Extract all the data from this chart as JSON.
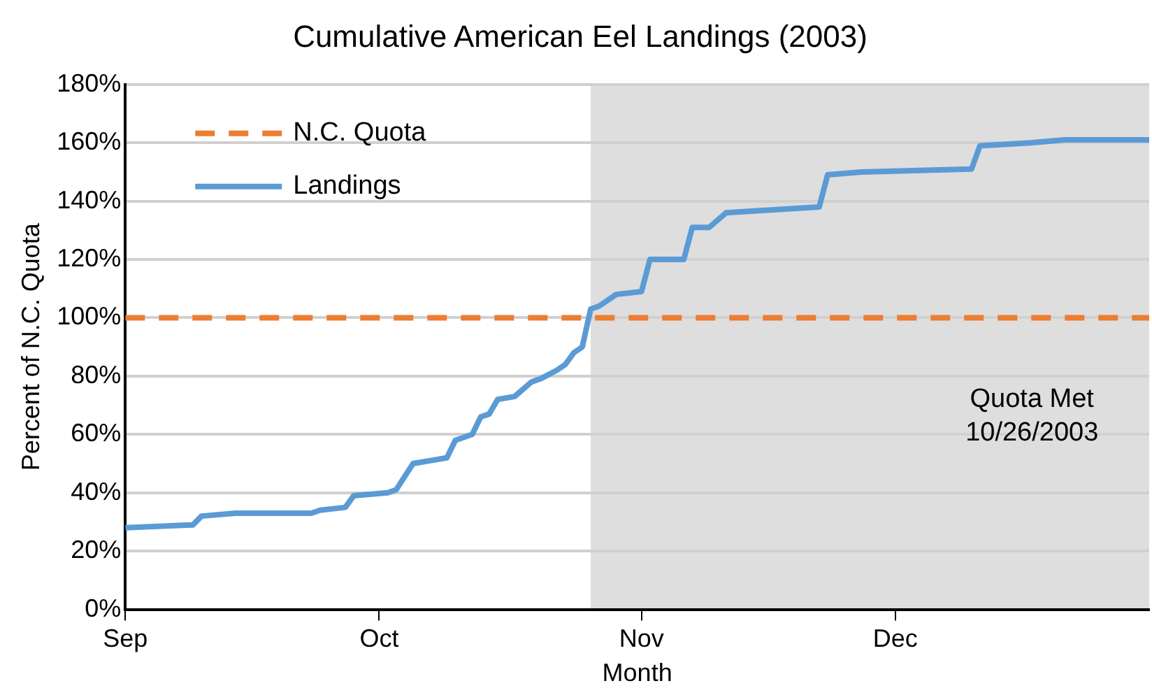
{
  "chart_data": {
    "type": "line",
    "title": "Cumulative American Eel Landings (2003)",
    "xlabel": "Month",
    "ylabel": "Percent of N.C. Quota",
    "x": [
      "2003-09-01",
      "2003-09-09",
      "2003-09-10",
      "2003-09-14",
      "2003-09-15",
      "2003-09-23",
      "2003-09-24",
      "2003-09-27",
      "2003-09-28",
      "2003-10-02",
      "2003-10-03",
      "2003-10-05",
      "2003-10-07",
      "2003-10-09",
      "2003-10-10",
      "2003-10-12",
      "2003-10-13",
      "2003-10-14",
      "2003-10-15",
      "2003-10-17",
      "2003-10-19",
      "2003-10-20",
      "2003-10-22",
      "2003-10-23",
      "2003-10-24",
      "2003-10-25",
      "2003-10-26",
      "2003-10-27",
      "2003-10-29",
      "2003-11-01",
      "2003-11-02",
      "2003-11-06",
      "2003-11-07",
      "2003-11-09",
      "2003-11-11",
      "2003-11-22",
      "2003-11-23",
      "2003-11-27",
      "2003-12-10",
      "2003-12-11",
      "2003-12-17",
      "2003-12-21",
      "2003-12-31"
    ],
    "series": [
      {
        "name": "Landings",
        "color": "#5b9bd5",
        "values": [
          28,
          29,
          32,
          33,
          33,
          33,
          34,
          35,
          39,
          40,
          41,
          50,
          51,
          52,
          58,
          60,
          66,
          67,
          72,
          73,
          78,
          79,
          82,
          84,
          88,
          90,
          103,
          104,
          108,
          109,
          120,
          120,
          131,
          131,
          136,
          138,
          149,
          150,
          151,
          159,
          160,
          161,
          161
        ]
      }
    ],
    "xlim": [
      "2003-09-01",
      "2003-12-31"
    ],
    "xticks": [
      {
        "value": "2003-09-01",
        "label": "Sep"
      },
      {
        "value": "2003-10-01",
        "label": "Oct"
      },
      {
        "value": "2003-11-01",
        "label": "Nov"
      },
      {
        "value": "2003-12-01",
        "label": "Dec"
      }
    ],
    "ylim": [
      0,
      180
    ],
    "yticks": [
      {
        "value": 0,
        "label": "0%"
      },
      {
        "value": 20,
        "label": "20%"
      },
      {
        "value": 40,
        "label": "40%"
      },
      {
        "value": 60,
        "label": "60%"
      },
      {
        "value": 80,
        "label": "80%"
      },
      {
        "value": 100,
        "label": "100%"
      },
      {
        "value": 120,
        "label": "120%"
      },
      {
        "value": 140,
        "label": "140%"
      },
      {
        "value": 160,
        "label": "160%"
      },
      {
        "value": 180,
        "label": "180%"
      }
    ],
    "ref_lines": [
      {
        "axis": "y",
        "value": 100,
        "label": "N.C. Quota",
        "color": "#ed7d31",
        "line_style": "dashed"
      }
    ],
    "bands": [
      {
        "axis": "x",
        "from": "2003-10-26",
        "to": "2003-12-31",
        "label": "Quota Met\n10/26/2003",
        "color": "#dedede"
      }
    ],
    "grid": "y",
    "legend": "top left",
    "marker": "none",
    "line_style": "solid"
  }
}
